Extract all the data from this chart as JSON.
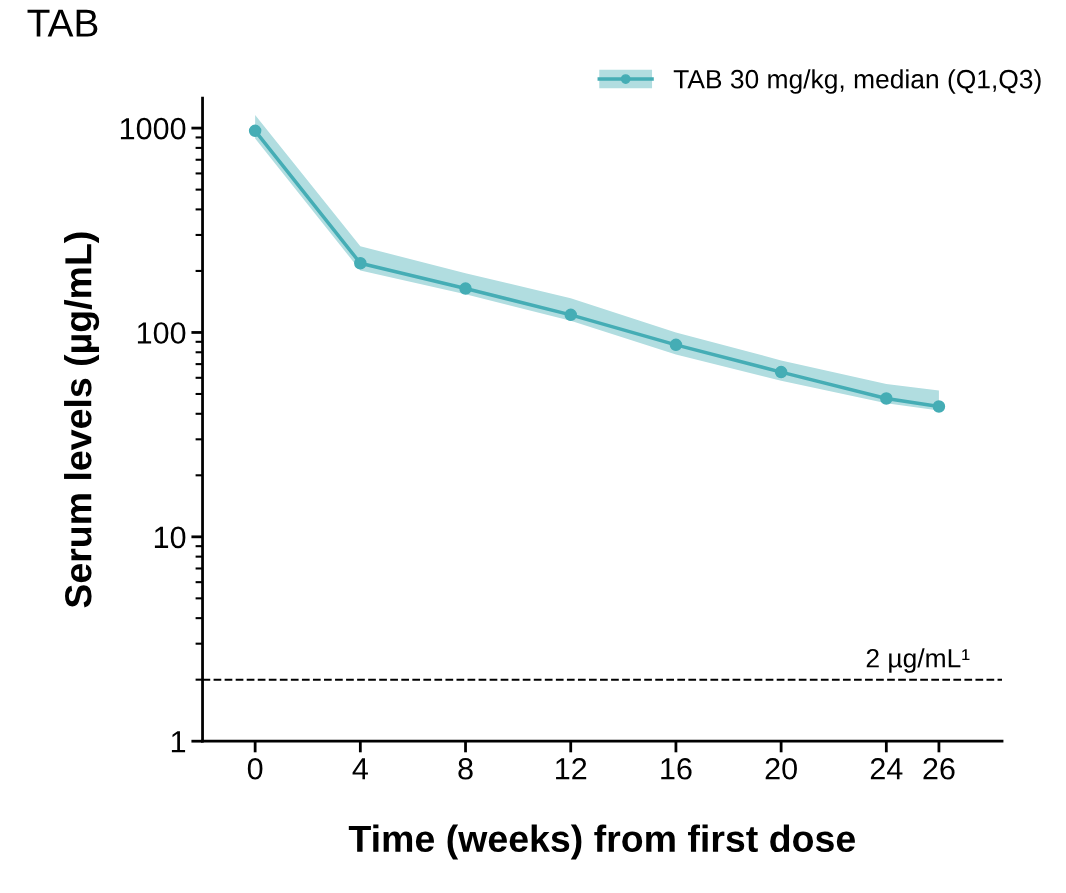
{
  "chart_data": {
    "type": "line",
    "title": "TAB",
    "xlabel": "Time (weeks) from first dose",
    "ylabel": "Serum levels (µg/mL)",
    "x": [
      0,
      4,
      8,
      12,
      16,
      20,
      24,
      26
    ],
    "series": [
      {
        "name": "TAB 30 mg/kg, median (Q1,Q3)",
        "color": "#45adb5",
        "values": [
          970,
          218,
          164,
          122,
          87,
          64,
          47.5,
          43.4
        ],
        "lower": [
          890,
          201,
          154,
          114,
          78,
          58,
          45,
          41.5
        ],
        "upper": [
          1160,
          264,
          195,
          147,
          100,
          73,
          56,
          52
        ]
      }
    ],
    "log": "y",
    "xlim": [
      -2,
      28.4
    ],
    "xticks": [
      0,
      4,
      8,
      12,
      16,
      20,
      24,
      26
    ],
    "ylim": [
      1,
      1400
    ],
    "yticks": [
      1,
      10,
      100,
      1000
    ],
    "ref_lines": [
      {
        "axis": "y",
        "value": 2,
        "label": "2 µg/mL¹",
        "color": "#000000",
        "line_style": "dashed"
      }
    ],
    "marker": "circle",
    "line_style": "solid",
    "legend": "top right",
    "grid": false
  }
}
